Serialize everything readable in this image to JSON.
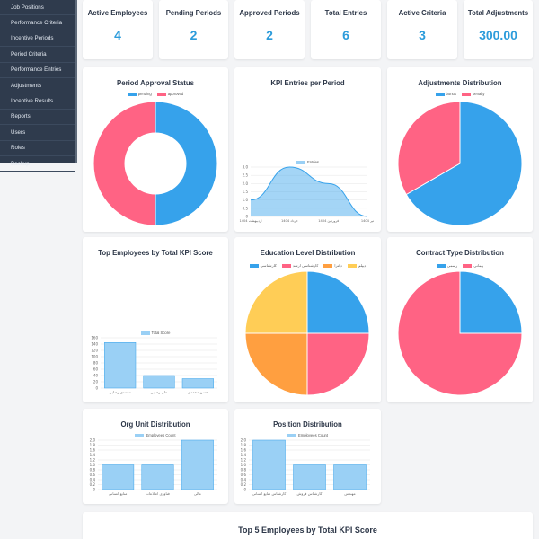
{
  "sidebar": {
    "items": [
      {
        "label": "Job Positions"
      },
      {
        "label": "Performance Criteria"
      },
      {
        "label": "Incentive Periods"
      },
      {
        "label": "Period Criteria"
      },
      {
        "label": "Performance Entries"
      },
      {
        "label": "Adjustments"
      },
      {
        "label": "Incentive Results"
      },
      {
        "label": "Reports"
      },
      {
        "label": "Users"
      },
      {
        "label": "Roles"
      },
      {
        "label": "Backup"
      }
    ]
  },
  "stats": [
    {
      "label": "Active Employees",
      "value": "4"
    },
    {
      "label": "Pending Periods",
      "value": "2"
    },
    {
      "label": "Approved Periods",
      "value": "2"
    },
    {
      "label": "Total Entries",
      "value": "6"
    },
    {
      "label": "Active Criteria",
      "value": "3"
    },
    {
      "label": "Total Adjustments",
      "value": "300.00"
    }
  ],
  "colors": {
    "blue": "#36a2eb",
    "pink": "#ff6384",
    "orange": "#ff9f40",
    "yellow": "#ffcd56",
    "barFill": "#9ad0f5",
    "accent": "#2d9cdb"
  },
  "charts": {
    "period_approval": {
      "title": "Period Approval Status"
    },
    "kpi_entries": {
      "title": "KPI Entries per Period"
    },
    "adjustments": {
      "title": "Adjustments Distribution"
    },
    "top_employees": {
      "title": "Top Employees by Total KPI Score"
    },
    "education": {
      "title": "Education Level Distribution"
    },
    "contract": {
      "title": "Contract Type Distribution"
    },
    "org_unit": {
      "title": "Org Unit Distribution"
    },
    "position": {
      "title": "Position Distribution"
    }
  },
  "bottom_title": "Top 5 Employees by Total KPI Score",
  "chart_data": [
    {
      "id": "period_approval",
      "type": "pie",
      "title": "Period Approval Status",
      "doughnut": true,
      "labels": [
        "pending",
        "approved"
      ],
      "values": [
        2,
        2
      ],
      "colors": [
        "#36a2eb",
        "#ff6384"
      ],
      "legend": "top"
    },
    {
      "id": "kpi_entries",
      "type": "area",
      "title": "KPI Entries per Period",
      "categories": [
        "اردیبهشت 1404",
        "خرداد 1404",
        "فروردین 1404",
        "تیر 1404"
      ],
      "series": [
        {
          "name": "Entries",
          "values": [
            1,
            3,
            2,
            0
          ]
        }
      ],
      "ylim": [
        0,
        3
      ],
      "yticks": [
        "0",
        "0.5",
        "1.0",
        "1.5",
        "2.0",
        "2.5",
        "3.0"
      ],
      "legend": "top"
    },
    {
      "id": "adjustments",
      "type": "pie",
      "title": "Adjustments Distribution",
      "labels": [
        "bonus",
        "penalty"
      ],
      "values": [
        2,
        1
      ],
      "colors": [
        "#36a2eb",
        "#ff6384"
      ],
      "legend": "top"
    },
    {
      "id": "top_employees",
      "type": "bar",
      "title": "Top Employees by Total KPI Score",
      "categories": [
        "محمدی رضایی",
        "علی رضایی",
        "حسن محمدی"
      ],
      "series": [
        {
          "name": "Total Score",
          "values": [
            145,
            40,
            30
          ]
        }
      ],
      "ylim": [
        0,
        160
      ],
      "yticks": [
        "0",
        "20",
        "40",
        "60",
        "80",
        "100",
        "120",
        "140",
        "160"
      ],
      "legend": "top"
    },
    {
      "id": "education",
      "type": "pie",
      "title": "Education Level Distribution",
      "labels": [
        "کارشناسی",
        "کارشناسی ارشد",
        "دکترا",
        "دیپلم"
      ],
      "values": [
        1,
        1,
        1,
        1
      ],
      "colors": [
        "#36a2eb",
        "#ff6384",
        "#ff9f40",
        "#ffcd56"
      ],
      "legend": "top"
    },
    {
      "id": "contract",
      "type": "pie",
      "title": "Contract Type Distribution",
      "labels": [
        "رسمی",
        "پیمانی"
      ],
      "values": [
        1,
        3
      ],
      "colors": [
        "#36a2eb",
        "#ff6384"
      ],
      "legend": "top"
    },
    {
      "id": "org_unit",
      "type": "bar",
      "title": "Org Unit Distribution",
      "categories": [
        "منابع انسانی",
        "فناوری اطلاعات",
        "مالی"
      ],
      "series": [
        {
          "name": "Employees Count",
          "values": [
            1,
            1,
            2
          ]
        }
      ],
      "ylim": [
        0,
        2
      ],
      "yticks": [
        "0",
        "0.2",
        "0.4",
        "0.6",
        "0.8",
        "1.0",
        "1.2",
        "1.4",
        "1.6",
        "1.8",
        "2.0"
      ],
      "legend": "top"
    },
    {
      "id": "position",
      "type": "bar",
      "title": "Position Distribution",
      "categories": [
        "کارشناس منابع انسانی",
        "کارشناس فروش",
        "مهندس"
      ],
      "series": [
        {
          "name": "Employees Count",
          "values": [
            2,
            1,
            1
          ]
        }
      ],
      "ylim": [
        0,
        2
      ],
      "yticks": [
        "0",
        "0.2",
        "0.4",
        "0.6",
        "0.8",
        "1.0",
        "1.2",
        "1.4",
        "1.6",
        "1.8",
        "2.0"
      ],
      "legend": "top"
    }
  ]
}
